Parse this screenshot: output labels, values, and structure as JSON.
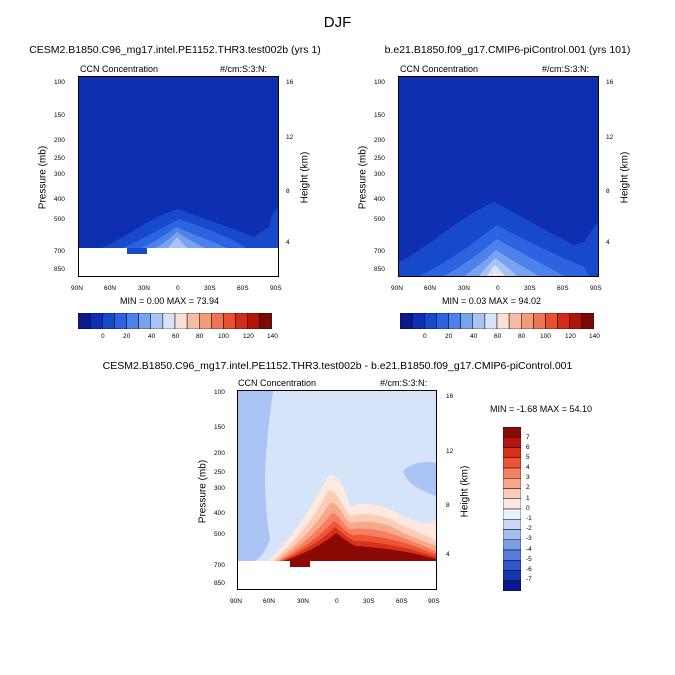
{
  "page": {
    "title": "DJF"
  },
  "panels": [
    {
      "id": "top-left",
      "run_title": "CESM2.B1850.C96_mg17.intel.PE1152.THR3.test002b (yrs 1)",
      "left_label": "CCN Concentration",
      "right_label": "#/cm:S:3:N:",
      "ylabel": "Pressure (mb)",
      "y2label": "Height (km)",
      "min_max": "MIN =   0.00   MAX =   73.94"
    },
    {
      "id": "top-right",
      "run_title": "b.e21.B1850.f09_g17.CMIP6-piControl.001 (yrs 101)",
      "left_label": "CCN Concentration",
      "right_label": "#/cm:S:3:N:",
      "ylabel": "Pressure (mb)",
      "y2label": "Height (km)",
      "min_max": "MIN =   0.03   MAX =   94.02"
    },
    {
      "id": "bottom",
      "run_title": "CESM2.B1850.C96_mg17.intel.PE1152.THR3.test002b - b.e21.B1850.f09_g17.CMIP6-piControl.001",
      "left_label": "CCN Concentration",
      "right_label": "#/cm:S:3:N:",
      "ylabel": "Pressure (mb)",
      "y2label": "Height (km)",
      "min_max": "MIN =  -1.68   MAX =  54.10"
    }
  ],
  "chart_data": {
    "type": "heatmap",
    "x_ticks": [
      "90N",
      "60N",
      "30N",
      "0",
      "30S",
      "60S",
      "90S"
    ],
    "x_values": [
      90,
      60,
      30,
      0,
      -30,
      -60,
      -90
    ],
    "y_ticks": [
      "100",
      "150",
      "200",
      "250",
      "300",
      "400",
      "500",
      "700",
      "850"
    ],
    "y_values": [
      100,
      150,
      200,
      250,
      300,
      400,
      500,
      700,
      850
    ],
    "y_scale": "log",
    "y2_ticks": [
      "16",
      "12",
      "8",
      "4"
    ],
    "y2_values": [
      16,
      12,
      8,
      4
    ],
    "colorbar_abs": {
      "labels": [
        "0",
        "20",
        "40",
        "60",
        "80",
        "100",
        "120",
        "140"
      ],
      "colors": [
        "#0a1a8c",
        "#0d2fb0",
        "#1749cc",
        "#2b63e0",
        "#4d82ea",
        "#7aa3ef",
        "#a9c4f4",
        "#d6e4fa",
        "#fbe0d4",
        "#f7bca6",
        "#f39a7b",
        "#ee7551",
        "#e8502f",
        "#d42a18",
        "#b0150c",
        "#7a0a05"
      ]
    },
    "colorbar_diff": {
      "labels": [
        "7",
        "6",
        "5",
        "4",
        "3",
        "2",
        "1",
        "0",
        "-1",
        "-2",
        "-3",
        "-4",
        "-5",
        "-6",
        "-7"
      ],
      "colors": [
        "#8b0a05",
        "#b8160c",
        "#d9301a",
        "#ec5535",
        "#f4805f",
        "#f8a88a",
        "#fbccb6",
        "#fde9df",
        "#e8f0fb",
        "#c8d9f5",
        "#a3bdef",
        "#7c9ce6",
        "#557bdb",
        "#2f57cc",
        "#1536b0",
        "#0a1a8c"
      ]
    }
  }
}
